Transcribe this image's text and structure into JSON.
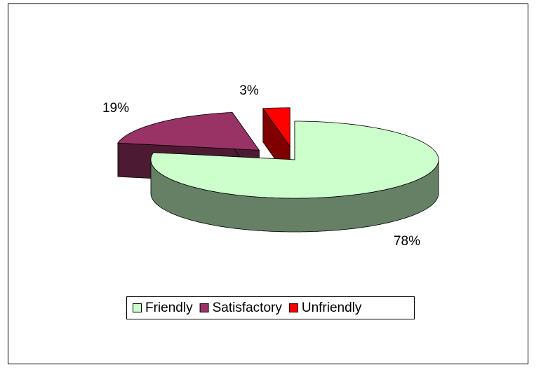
{
  "chart_data": {
    "type": "pie3d",
    "categories": [
      "Friendly",
      "Satisfactory",
      "Unfriendly"
    ],
    "values": [
      78,
      19,
      3
    ],
    "value_labels": [
      "78%",
      "19%",
      "3%"
    ],
    "colors": [
      "#ccffcc",
      "#993366",
      "#ff0000"
    ],
    "legend": "bottom"
  }
}
